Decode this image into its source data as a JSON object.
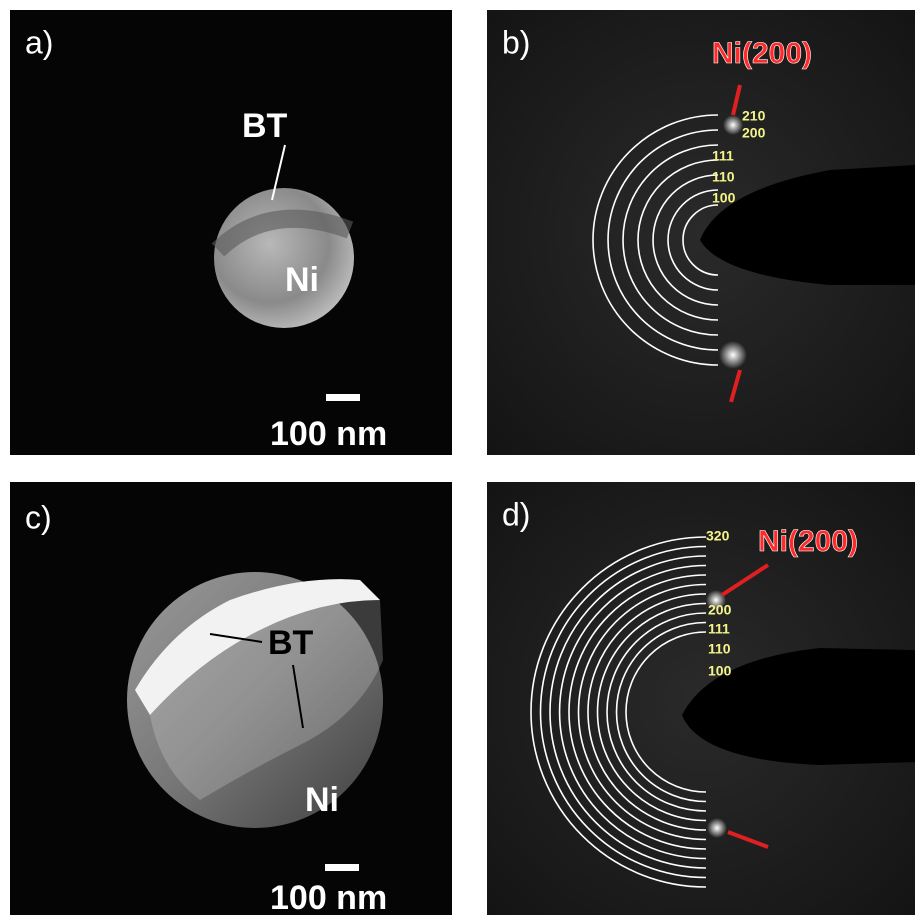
{
  "panels": [
    {
      "label": "a)",
      "annotations": [
        "BT",
        "Ni"
      ],
      "scale_bar": "100 nm"
    },
    {
      "label": "b)",
      "peak": "Ni(200)",
      "rings": [
        "210",
        "200",
        "111",
        "110",
        "100"
      ]
    },
    {
      "label": "c)",
      "annotations": [
        "BT",
        "Ni"
      ],
      "scale_bar": "100 nm"
    },
    {
      "label": "d)",
      "peak": "Ni(200)",
      "rings": [
        "320",
        "200",
        "111",
        "110",
        "100"
      ]
    }
  ]
}
